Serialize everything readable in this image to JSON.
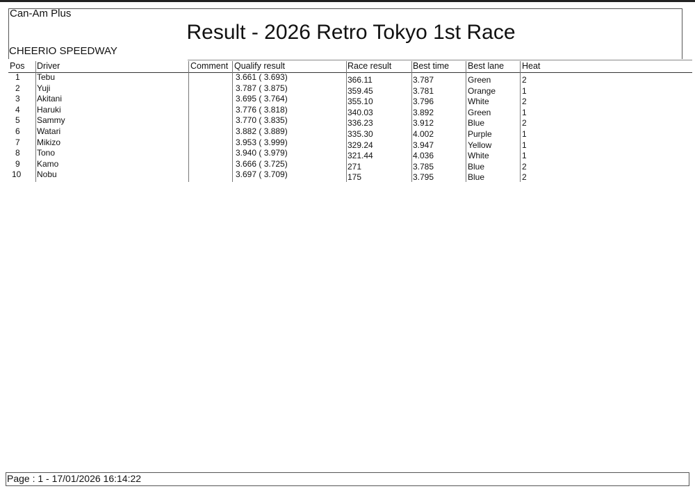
{
  "header": {
    "series": "Can-Am Plus",
    "title": "Result - 2026 Retro Tokyo 1st Race",
    "venue": "CHEERIO SPEEDWAY"
  },
  "table": {
    "columns": [
      "Pos",
      "Driver",
      "Comment",
      "Qualify result",
      "Race result",
      "Best time",
      "Best lane",
      "Heat"
    ],
    "rows": [
      [
        "1",
        "Tebu",
        "",
        "3.661 ( 3.693)",
        "366.11",
        "3.787",
        "Green",
        "2"
      ],
      [
        "2",
        "Yuji",
        "",
        "3.787 ( 3.875)",
        "359.45",
        "3.781",
        "Orange",
        "1"
      ],
      [
        "3",
        "Akitani",
        "",
        "3.695 ( 3.764)",
        "355.10",
        "3.796",
        "White",
        "2"
      ],
      [
        "4",
        "Haruki",
        "",
        "3.776 ( 3.818)",
        "340.03",
        "3.892",
        "Green",
        "1"
      ],
      [
        "5",
        "Sammy",
        "",
        "3.770 ( 3.835)",
        "336.23",
        "3.912",
        "Blue",
        "2"
      ],
      [
        "6",
        "Watari",
        "",
        "3.882 ( 3.889)",
        "335.30",
        "4.002",
        "Purple",
        "1"
      ],
      [
        "7",
        "Mikizo",
        "",
        "3.953 ( 3.999)",
        "329.24",
        "3.947",
        "Yellow",
        "1"
      ],
      [
        "8",
        "Tono",
        "",
        "3.940 ( 3.979)",
        "321.44",
        "4.036",
        "White",
        "1"
      ],
      [
        "9",
        "Kamo",
        "",
        "3.666 ( 3.725)",
        "271",
        "3.785",
        "Blue",
        "2"
      ],
      [
        "10",
        "Nobu",
        "",
        "3.697 ( 3.709)",
        "175",
        "3.795",
        "Blue",
        "2"
      ]
    ]
  },
  "footer": {
    "page_info": "Page : 1 - 17/01/2026  16:14:22"
  }
}
